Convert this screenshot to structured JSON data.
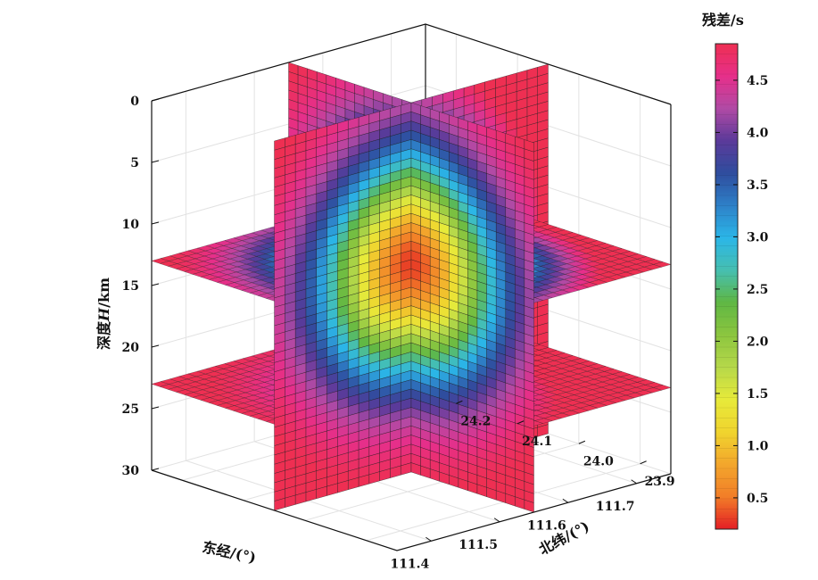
{
  "chart_data": {
    "type": "heatmap",
    "title": "",
    "zlabel_cn": "深度",
    "zlabel_sym": "H",
    "zlabel_unit": "/km",
    "xlabel": "东经/(°)",
    "ylabel": "北纬/(°)",
    "x_ticks": [
      "111.4",
      "111.5",
      "111.6",
      "111.7"
    ],
    "y_ticks": [
      "23.9",
      "24.0",
      "24.1",
      "24.2"
    ],
    "z_ticks": [
      "0",
      "5",
      "10",
      "15",
      "20",
      "25",
      "30"
    ],
    "xlim": [
      111.35,
      111.75
    ],
    "ylim": [
      23.85,
      24.25
    ],
    "zlim": [
      0,
      30
    ],
    "slices": {
      "x": 111.55,
      "y": 24.05,
      "z": [
        13,
        23
      ]
    },
    "residual_min": {
      "x": 111.55,
      "y": 24.05,
      "z": 13,
      "value": 0.3
    },
    "colorbar": {
      "title": "残差/s",
      "ticks": [
        "0.5",
        "1.0",
        "1.5",
        "2.0",
        "2.5",
        "3.0",
        "3.5",
        "4.0",
        "4.5"
      ],
      "range": [
        0.2,
        4.85
      ],
      "colormap": [
        "#e41e25",
        "#f27e28",
        "#f3a62c",
        "#f0d42e",
        "#e7ea3a",
        "#b6d84a",
        "#8cc63f",
        "#5fb744",
        "#46bfb0",
        "#2bb6e8",
        "#2e80c8",
        "#2f4d9e",
        "#5b3a9a",
        "#b14aa5",
        "#e62f8a",
        "#ee2f52"
      ],
      "grid": "on"
    }
  }
}
